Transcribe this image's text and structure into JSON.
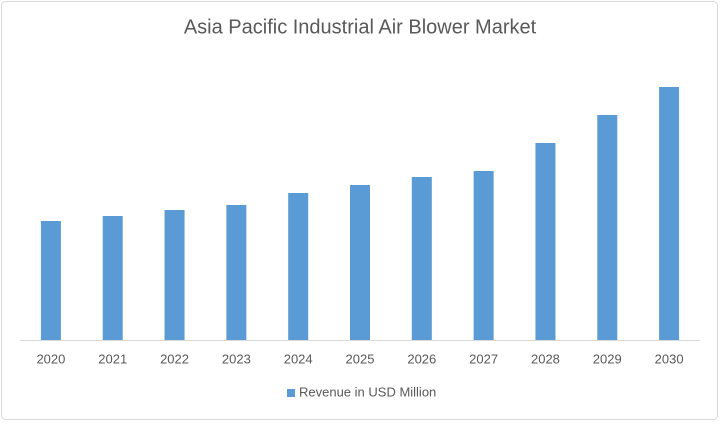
{
  "chart_data": {
    "type": "bar",
    "title": "Asia Pacific Industrial Air Blower Market",
    "categories": [
      "2020",
      "2021",
      "2022",
      "2023",
      "2024",
      "2025",
      "2026",
      "2027",
      "2028",
      "2029",
      "2030"
    ],
    "series": [
      {
        "name": "Revenue in USD Million",
        "color": "#5b9bd5",
        "values": [
          119,
          124,
          130,
          135,
          147,
          155,
          163,
          169,
          197,
          225,
          253
        ]
      }
    ],
    "legend": "bottom"
  }
}
